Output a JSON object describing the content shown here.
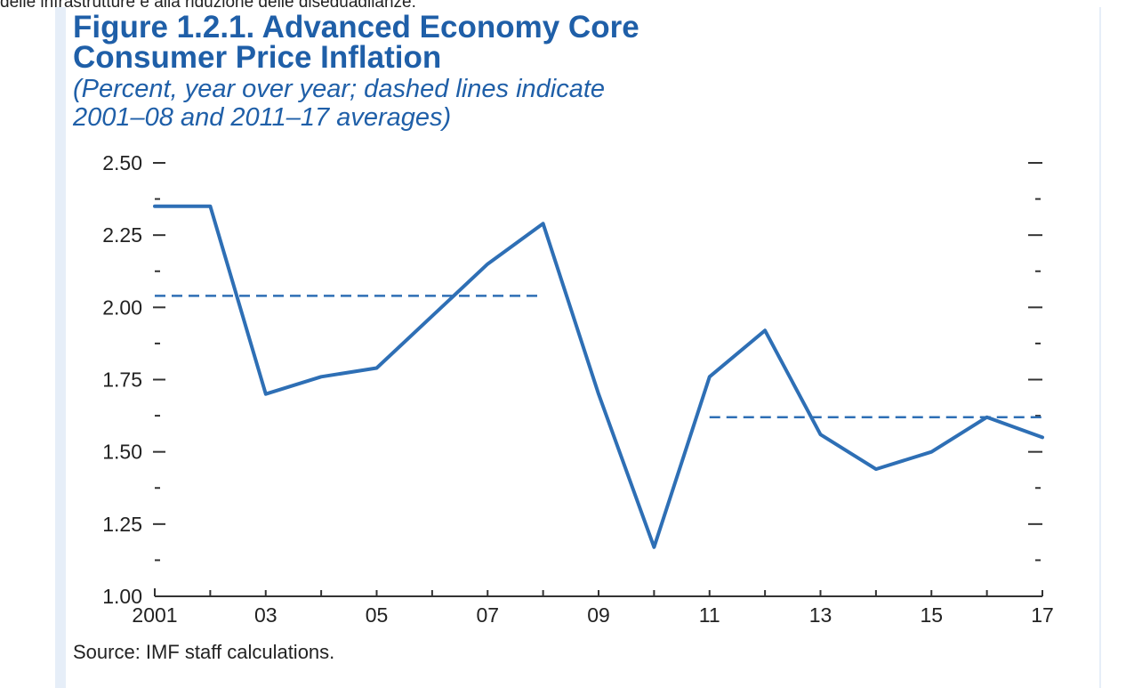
{
  "page": {
    "top_text": "delle infrastrutture e alla riduzione delle diseguaglianze.",
    "source": "Source: IMF staff calculations."
  },
  "chart_data": {
    "type": "line",
    "title": "Figure 1.2.1.  Advanced Economy Core Consumer Price Inflation",
    "title_lines": [
      "Figure 1.2.1.  Advanced Economy Core",
      "Consumer Price Inflation"
    ],
    "subtitle": "(Percent, year over year; dashed lines indicate 2001–08 and 2011–17 averages)",
    "subtitle_lines": [
      "(Percent, year over year; dashed lines indicate",
      "2001–08 and 2011–17 averages)"
    ],
    "xlabel": "",
    "ylabel": "",
    "x": [
      2001,
      2002,
      2003,
      2004,
      2005,
      2006,
      2007,
      2008,
      2009,
      2010,
      2011,
      2012,
      2013,
      2014,
      2015,
      2016,
      2017
    ],
    "xlim": [
      2001,
      2017
    ],
    "x_tick_labels": [
      {
        "x": 2001,
        "label": "2001"
      },
      {
        "x": 2003,
        "label": "03"
      },
      {
        "x": 2005,
        "label": "05"
      },
      {
        "x": 2007,
        "label": "07"
      },
      {
        "x": 2009,
        "label": "09"
      },
      {
        "x": 2011,
        "label": "11"
      },
      {
        "x": 2013,
        "label": "13"
      },
      {
        "x": 2015,
        "label": "15"
      },
      {
        "x": 2017,
        "label": "17"
      }
    ],
    "ylim": [
      1.0,
      2.5
    ],
    "y_ticks": [
      "1.00",
      "1.25",
      "1.50",
      "1.75",
      "2.00",
      "2.25",
      "2.50"
    ],
    "y_minor_step": 0.125,
    "series": [
      {
        "values": [
          2.35,
          2.35,
          1.7,
          1.76,
          1.79,
          1.97,
          2.15,
          2.29,
          1.7,
          1.17,
          1.76,
          1.92,
          1.56,
          1.44,
          1.5,
          1.62,
          1.55
        ],
        "color": "#2e6fb5"
      }
    ],
    "averages": [
      {
        "period": "2001–08",
        "x_start": 2001,
        "x_end": 2008,
        "value": 2.04,
        "color": "#2e6fb5"
      },
      {
        "period": "2011–17",
        "x_start": 2011,
        "x_end": 2017,
        "value": 1.62,
        "color": "#2e6fb5"
      }
    ],
    "grid": false,
    "legend": "none",
    "colors": {
      "title": "#1f5fa8",
      "line": "#2e6fb5",
      "axis": "#333333",
      "background_panel": "#e6eef8"
    }
  }
}
